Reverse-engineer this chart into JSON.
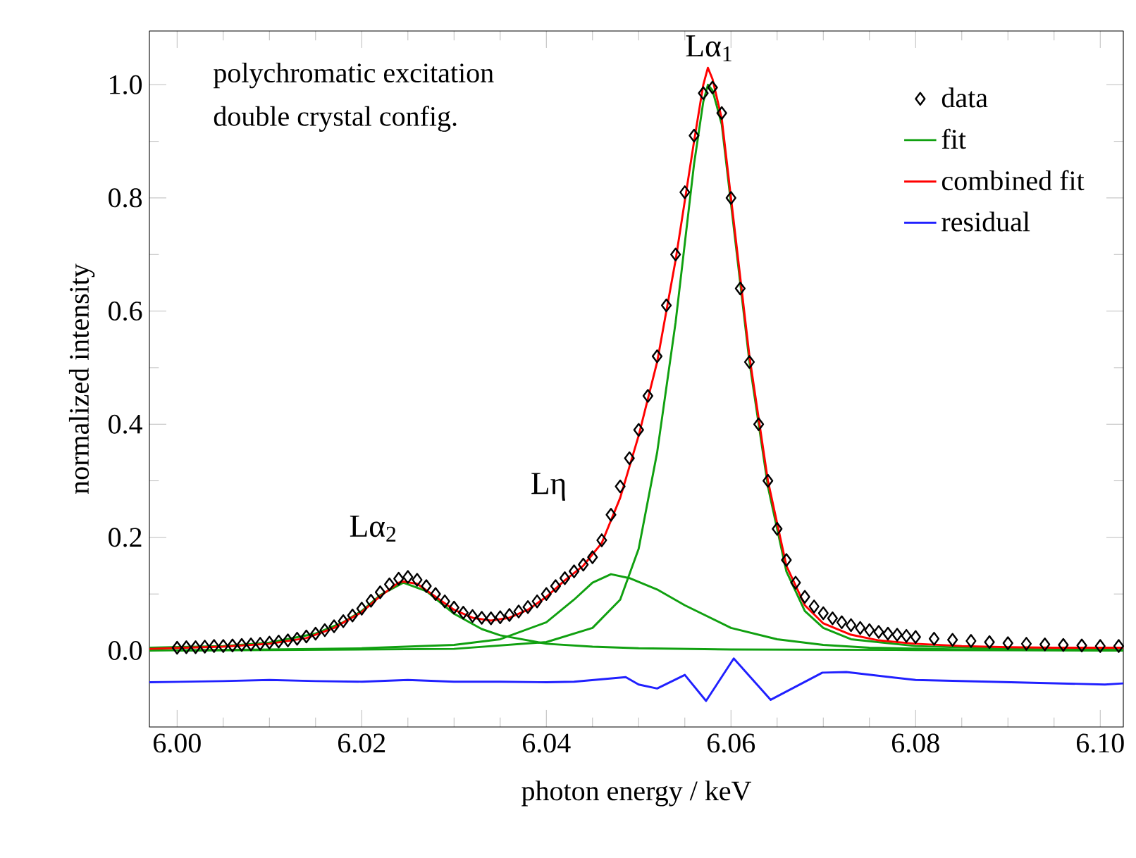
{
  "chart_data": {
    "type": "line",
    "xlabel": "photon energy / keV",
    "ylabel": "normalized intensity",
    "xlim": [
      5.997,
      6.1025
    ],
    "ylim": [
      -0.135,
      1.095
    ],
    "xticks": [
      {
        "value": 6.0,
        "label": "6.00"
      },
      {
        "value": 6.02,
        "label": "6.02"
      },
      {
        "value": 6.04,
        "label": "6.04"
      },
      {
        "value": 6.06,
        "label": "6.06"
      },
      {
        "value": 6.08,
        "label": "6.08"
      },
      {
        "value": 6.1,
        "label": "6.10"
      }
    ],
    "yticks": [
      {
        "value": 0.0,
        "label": "0.0"
      },
      0.2,
      0.4,
      0.6,
      0.8,
      {
        "value": 1.0,
        "label": "1.0"
      }
    ],
    "legend": "top right",
    "grid": false,
    "annotations": [
      "polychromatic excitation",
      "double crystal config.",
      "Lα$_{1}$",
      "Lη",
      "Lα$_{2}$"
    ],
    "series": [
      {
        "name": "data",
        "type": "scatter",
        "marker": "diamond",
        "color": "#000000",
        "x": [
          6.0,
          6.001,
          6.002,
          6.003,
          6.004,
          6.005,
          6.006,
          6.007,
          6.008,
          6.009,
          6.01,
          6.011,
          6.012,
          6.013,
          6.014,
          6.015,
          6.016,
          6.017,
          6.018,
          6.019,
          6.02,
          6.021,
          6.022,
          6.023,
          6.024,
          6.025,
          6.026,
          6.027,
          6.028,
          6.029,
          6.03,
          6.031,
          6.032,
          6.033,
          6.034,
          6.035,
          6.036,
          6.037,
          6.038,
          6.039,
          6.04,
          6.041,
          6.042,
          6.043,
          6.044,
          6.045,
          6.046,
          6.047,
          6.048,
          6.049,
          6.05,
          6.051,
          6.052,
          6.053,
          6.054,
          6.055,
          6.056,
          6.057,
          6.058,
          6.059,
          6.06,
          6.061,
          6.062,
          6.063,
          6.064,
          6.065,
          6.066,
          6.067,
          6.068,
          6.069,
          6.07,
          6.071,
          6.072,
          6.073,
          6.074,
          6.075,
          6.076,
          6.077,
          6.078,
          6.079,
          6.08,
          6.082,
          6.084,
          6.086,
          6.088,
          6.09,
          6.092,
          6.094,
          6.096,
          6.098,
          6.1,
          6.102
        ],
        "values": [
          0.005,
          0.006,
          0.006,
          0.007,
          0.008,
          0.008,
          0.009,
          0.01,
          0.011,
          0.012,
          0.014,
          0.016,
          0.018,
          0.021,
          0.025,
          0.03,
          0.036,
          0.043,
          0.052,
          0.062,
          0.074,
          0.088,
          0.103,
          0.117,
          0.127,
          0.13,
          0.125,
          0.114,
          0.1,
          0.087,
          0.076,
          0.067,
          0.061,
          0.058,
          0.057,
          0.059,
          0.063,
          0.069,
          0.077,
          0.087,
          0.1,
          0.114,
          0.128,
          0.14,
          0.152,
          0.165,
          0.195,
          0.24,
          0.29,
          0.34,
          0.39,
          0.45,
          0.52,
          0.61,
          0.7,
          0.81,
          0.91,
          0.985,
          0.995,
          0.95,
          0.8,
          0.64,
          0.51,
          0.4,
          0.3,
          0.215,
          0.16,
          0.12,
          0.095,
          0.078,
          0.066,
          0.057,
          0.05,
          0.045,
          0.04,
          0.036,
          0.033,
          0.03,
          0.028,
          0.026,
          0.024,
          0.021,
          0.019,
          0.017,
          0.015,
          0.013,
          0.012,
          0.011,
          0.01,
          0.009,
          0.008,
          0.008
        ]
      },
      {
        "name": "fit",
        "color": "#10a010",
        "x": [
          6.0,
          6.03,
          6.04,
          6.045,
          6.048,
          6.05,
          6.052,
          6.054,
          6.056,
          6.057,
          6.0575,
          6.058,
          6.059,
          6.06,
          6.062,
          6.064,
          6.066,
          6.068,
          6.07,
          6.073,
          6.08,
          6.09,
          6.1025
        ],
        "values": [
          0.0,
          0.003,
          0.015,
          0.04,
          0.09,
          0.18,
          0.35,
          0.58,
          0.86,
          0.97,
          1.0,
          0.99,
          0.93,
          0.79,
          0.51,
          0.29,
          0.14,
          0.07,
          0.04,
          0.02,
          0.008,
          0.003,
          0.001
        ]
      },
      {
        "color": "#10a010",
        "x": [
          5.997,
          6.01,
          6.02,
          6.03,
          6.035,
          6.04,
          6.043,
          6.045,
          6.047,
          6.049,
          6.052,
          6.055,
          6.06,
          6.065,
          6.07,
          6.075,
          6.085,
          6.1025
        ],
        "values": [
          0.0,
          0.002,
          0.004,
          0.01,
          0.02,
          0.05,
          0.09,
          0.12,
          0.135,
          0.128,
          0.108,
          0.08,
          0.04,
          0.02,
          0.01,
          0.005,
          0.002,
          0.0
        ]
      },
      {
        "color": "#10a010",
        "x": [
          5.997,
          6.005,
          6.01,
          6.015,
          6.018,
          6.02,
          6.022,
          6.0245,
          6.027,
          6.03,
          6.033,
          6.035,
          6.04,
          6.045,
          6.05,
          6.06,
          6.08,
          6.1025
        ],
        "values": [
          0.005,
          0.008,
          0.014,
          0.03,
          0.05,
          0.07,
          0.098,
          0.12,
          0.105,
          0.065,
          0.038,
          0.027,
          0.012,
          0.007,
          0.004,
          0.002,
          0.001,
          0.0
        ]
      },
      {
        "name": "combined fit",
        "color": "#ff0000",
        "x": [
          5.997,
          6.005,
          6.01,
          6.014,
          6.017,
          6.02,
          6.022,
          6.024,
          6.0245,
          6.026,
          6.028,
          6.03,
          6.032,
          6.034,
          6.036,
          6.038,
          6.04,
          6.042,
          6.044,
          6.046,
          6.048,
          6.05,
          6.052,
          6.054,
          6.056,
          6.057,
          6.0575,
          6.058,
          6.059,
          6.06,
          6.062,
          6.064,
          6.066,
          6.068,
          6.07,
          6.073,
          6.076,
          6.08,
          6.085,
          6.09,
          6.095,
          6.1025
        ],
        "values": [
          0.003,
          0.007,
          0.012,
          0.022,
          0.04,
          0.068,
          0.096,
          0.12,
          0.122,
          0.118,
          0.095,
          0.072,
          0.058,
          0.053,
          0.058,
          0.072,
          0.095,
          0.124,
          0.15,
          0.19,
          0.27,
          0.38,
          0.51,
          0.69,
          0.9,
          1.0,
          1.03,
          1.01,
          0.94,
          0.8,
          0.52,
          0.3,
          0.15,
          0.08,
          0.048,
          0.028,
          0.018,
          0.012,
          0.008,
          0.006,
          0.005,
          0.005
        ]
      },
      {
        "name": "residual",
        "color": "#2020ff",
        "x": [
          5.997,
          6.005,
          6.01,
          6.015,
          6.02,
          6.025,
          6.03,
          6.035,
          6.04,
          6.043,
          6.0486,
          6.05,
          6.052,
          6.055,
          6.0573,
          6.0603,
          6.0643,
          6.0699,
          6.0725,
          6.08,
          6.088,
          6.1005,
          6.1025
        ],
        "values": [
          -0.056,
          -0.054,
          -0.052,
          -0.054,
          -0.055,
          -0.052,
          -0.055,
          -0.055,
          -0.056,
          -0.055,
          -0.047,
          -0.06,
          -0.067,
          -0.043,
          -0.089,
          -0.014,
          -0.087,
          -0.039,
          -0.038,
          -0.052,
          -0.055,
          -0.06,
          -0.058
        ]
      }
    ]
  }
}
